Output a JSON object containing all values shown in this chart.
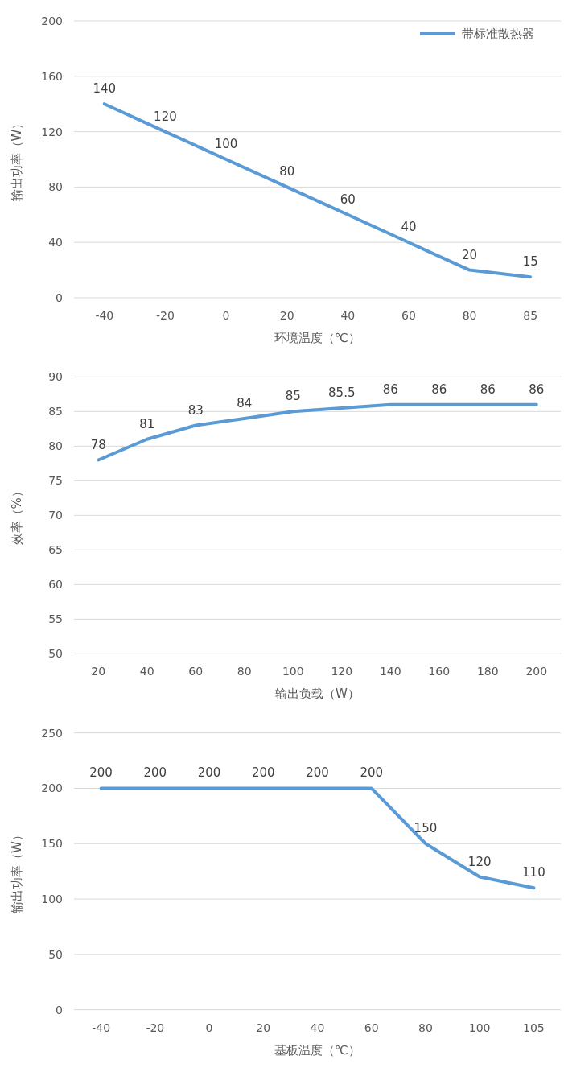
{
  "chart_data": [
    {
      "type": "line",
      "categories": [
        "-40",
        "-20",
        "0",
        "20",
        "40",
        "60",
        "80",
        "85"
      ],
      "series": [
        {
          "name": "带标准散热器",
          "color": "#5b9bd5",
          "values": [
            140,
            120,
            100,
            80,
            60,
            40,
            20,
            15
          ]
        }
      ],
      "ylim": [
        0,
        200
      ],
      "yticks": [
        0,
        40,
        80,
        120,
        160,
        200
      ],
      "xlabel": "环境温度（℃）",
      "ylabel": "输出功率（W）",
      "data_labels": true,
      "grid": "y",
      "legend": "top right"
    },
    {
      "type": "line",
      "categories": [
        "20",
        "40",
        "60",
        "80",
        "100",
        "120",
        "140",
        "160",
        "180",
        "200"
      ],
      "series": [
        {
          "color": "#5b9bd5",
          "values": [
            78,
            81,
            83,
            84,
            85,
            85.5,
            86,
            86,
            86,
            86
          ]
        }
      ],
      "ylim": [
        50,
        90
      ],
      "yticks": [
        50,
        55,
        60,
        65,
        70,
        75,
        80,
        85,
        90
      ],
      "xlabel": "输出负载（W）",
      "ylabel": "效率（%）",
      "data_labels": true,
      "grid": "y"
    },
    {
      "type": "line",
      "categories": [
        "-40",
        "-20",
        "0",
        "20",
        "40",
        "60",
        "80",
        "100",
        "105"
      ],
      "series": [
        {
          "color": "#5b9bd5",
          "values": [
            200,
            200,
            200,
            200,
            200,
            200,
            150,
            120,
            110
          ]
        }
      ],
      "ylim": [
        0,
        250
      ],
      "yticks": [
        0,
        50,
        100,
        150,
        200,
        250
      ],
      "xlabel": "基板温度（℃）",
      "ylabel": "输出功率（W）",
      "data_labels": true,
      "grid": "y"
    }
  ]
}
